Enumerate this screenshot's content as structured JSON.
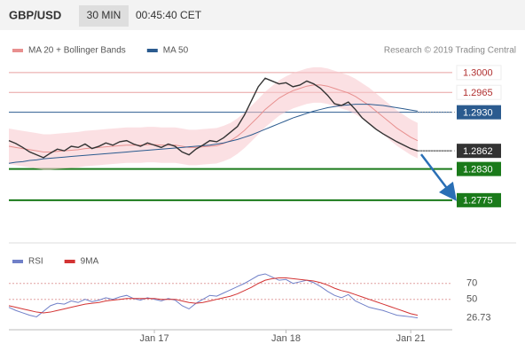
{
  "header": {
    "symbol": "GBP/USD",
    "interval": "30 MIN",
    "time": "00:45:40 CET"
  },
  "chart_data": [
    {
      "type": "line",
      "credit": "Research © 2019 Trading Central",
      "color": "#333333",
      "values": [
        1.288,
        1.2875,
        1.2868,
        1.286,
        1.2855,
        1.285,
        1.2858,
        1.2865,
        1.2862,
        1.287,
        1.2868,
        1.2874,
        1.2866,
        1.287,
        1.2876,
        1.2872,
        1.2878,
        1.288,
        1.2874,
        1.287,
        1.2876,
        1.2872,
        1.2868,
        1.2874,
        1.287,
        1.286,
        1.2855,
        1.2865,
        1.2872,
        1.288,
        1.2878,
        1.2885,
        1.2895,
        1.2905,
        1.2925,
        1.295,
        1.2975,
        1.299,
        1.2985,
        1.298,
        1.2982,
        1.2975,
        1.2978,
        1.2985,
        1.298,
        1.2972,
        1.296,
        1.2945,
        1.2942,
        1.2948,
        1.2935,
        1.292,
        1.291,
        1.29,
        1.2892,
        1.2885,
        1.2878,
        1.2872,
        1.2866,
        1.2862
      ],
      "series": [
        {
          "name": "MA 20 + Bollinger Bands",
          "color": "#e8908f",
          "values": [
            1.287,
            1.2868,
            1.2866,
            1.2864,
            1.2862,
            1.286,
            1.286,
            1.2861,
            1.2862,
            1.2863,
            1.2864,
            1.2866,
            1.2867,
            1.2868,
            1.2869,
            1.287,
            1.2871,
            1.2872,
            1.2872,
            1.2872,
            1.2873,
            1.2873,
            1.2872,
            1.2872,
            1.2872,
            1.287,
            1.2868,
            1.2868,
            1.2869,
            1.287,
            1.2871,
            1.2875,
            1.288,
            1.2888,
            1.2898,
            1.291,
            1.2922,
            1.2935,
            1.2945,
            1.2955,
            1.2962,
            1.2968,
            1.2972,
            1.2976,
            1.2978,
            1.2978,
            1.2976,
            1.2972,
            1.2968,
            1.2964,
            1.2958,
            1.295,
            1.2942,
            1.2932,
            1.2922,
            1.2912,
            1.2902,
            1.2894,
            1.2886,
            1.288
          ]
        },
        {
          "name": "MA 50",
          "color": "#2b5b8f",
          "values": [
            1.284,
            1.2842,
            1.2843,
            1.2845,
            1.2846,
            1.2848,
            1.2849,
            1.285,
            1.2851,
            1.2852,
            1.2853,
            1.2854,
            1.2855,
            1.2856,
            1.2857,
            1.2858,
            1.2859,
            1.286,
            1.2861,
            1.2862,
            1.2863,
            1.2864,
            1.2865,
            1.2866,
            1.2867,
            1.2868,
            1.2869,
            1.287,
            1.2871,
            1.2872,
            1.2874,
            1.2876,
            1.2879,
            1.2882,
            1.2886,
            1.289,
            1.2895,
            1.29,
            1.2905,
            1.291,
            1.2915,
            1.292,
            1.2924,
            1.2928,
            1.2932,
            1.2935,
            1.2938,
            1.294,
            1.2942,
            1.2943,
            1.2944,
            1.2944,
            1.2944,
            1.2943,
            1.2942,
            1.294,
            1.2938,
            1.2936,
            1.2934,
            1.2932
          ]
        }
      ],
      "levels": [
        {
          "value": 1.3,
          "label": "1.3000",
          "color": "#e8a0a0"
        },
        {
          "value": 1.2965,
          "label": "1.2965",
          "color": "#e8a0a0"
        },
        {
          "value": 1.293,
          "label": "1.2930",
          "color": "#2b5b8f"
        },
        {
          "value": 1.2862,
          "label": "1.2862",
          "color": "#333333"
        },
        {
          "value": 1.283,
          "label": "1.2830",
          "color": "#1a7a1a"
        },
        {
          "value": 1.2775,
          "label": "1.2775",
          "color": "#1a7a1a"
        }
      ],
      "ylim": [
        1.2706,
        1.3031
      ],
      "xlim": [
        0,
        64
      ],
      "xticks": [
        {
          "value": 21,
          "label": "Jan 17"
        },
        {
          "value": 40,
          "label": "Jan 18"
        },
        {
          "value": 58,
          "label": "Jan 21"
        }
      ]
    },
    {
      "type": "line",
      "series": [
        {
          "name": "RSI",
          "color": "#7080c8",
          "values": [
            40,
            36,
            33,
            30,
            28,
            35,
            42,
            45,
            44,
            48,
            46,
            50,
            47,
            49,
            52,
            50,
            53,
            55,
            51,
            49,
            52,
            50,
            48,
            51,
            49,
            42,
            38,
            45,
            50,
            55,
            54,
            58,
            62,
            66,
            70,
            75,
            80,
            82,
            78,
            74,
            75,
            70,
            72,
            74,
            71,
            66,
            60,
            55,
            52,
            56,
            48,
            44,
            40,
            38,
            36,
            33,
            30,
            29,
            28,
            26.73
          ]
        },
        {
          "name": "9MA",
          "color": "#d33333",
          "values": [
            42,
            40,
            38,
            36,
            34,
            33,
            34,
            36,
            38,
            40,
            42,
            44,
            45,
            46,
            48,
            49,
            50,
            51,
            51,
            51,
            51,
            51,
            50,
            50,
            50,
            48,
            46,
            45,
            46,
            48,
            50,
            52,
            54,
            57,
            61,
            65,
            70,
            74,
            76,
            77,
            77,
            76,
            75,
            74,
            73,
            71,
            68,
            64,
            61,
            59,
            56,
            53,
            50,
            47,
            44,
            41,
            38,
            35,
            32,
            30
          ]
        }
      ],
      "ylim": [
        14,
        92
      ],
      "yticks": [
        70,
        50
      ],
      "xlim": [
        0,
        64
      ]
    }
  ]
}
